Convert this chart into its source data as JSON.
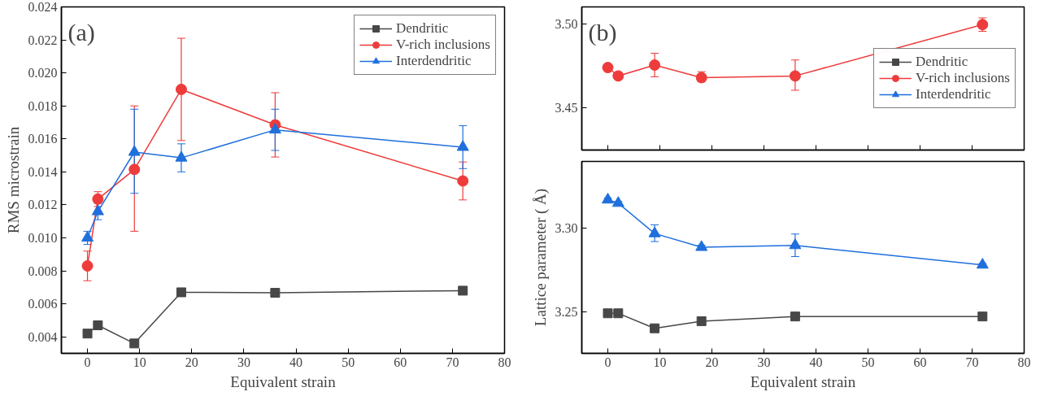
{
  "chart_data": [
    {
      "type": "line",
      "title": "(a)",
      "xlabel": "Equivalent strain",
      "ylabel": "RMS microstrain",
      "x": [
        0,
        2,
        9,
        18,
        36,
        72
      ],
      "xlim": [
        -5,
        80
      ],
      "xticks": [
        0,
        10,
        20,
        30,
        40,
        50,
        60,
        70,
        80
      ],
      "ylim": [
        0.003,
        0.024
      ],
      "yticks": [
        {
          "value": 0.004,
          "label": "0.004"
        },
        {
          "value": 0.006,
          "label": "0.006"
        },
        {
          "value": 0.008,
          "label": "0.008"
        },
        {
          "value": 0.01,
          "label": "0.010"
        },
        {
          "value": 0.012,
          "label": "0.012"
        },
        {
          "value": 0.014,
          "label": "0.014"
        },
        {
          "value": 0.016,
          "label": "0.016"
        },
        {
          "value": 0.018,
          "label": "0.018"
        },
        {
          "value": 0.02,
          "label": "0.020"
        },
        {
          "value": 0.022,
          "label": "0.022"
        },
        {
          "value": 0.024,
          "label": "0.024"
        }
      ],
      "grid": false,
      "legend": "top right",
      "series": [
        {
          "name": "Dendritic",
          "color": "#474747",
          "marker": "square",
          "values": [
            0.0042,
            0.0047,
            0.0036,
            0.0067,
            0.00667,
            0.0068
          ]
        },
        {
          "name": "V-rich inclusions",
          "color": "#ee3b3b",
          "marker": "circle",
          "values": [
            0.0083,
            0.01235,
            0.01415,
            0.019,
            0.01685,
            0.01345
          ],
          "errors": [
            [
              0.0074,
              0.0092
            ],
            [
              0.0119,
              0.0128
            ],
            [
              0.0104,
              0.018
            ],
            [
              0.0159,
              0.0221
            ],
            [
              0.0149,
              0.0188
            ],
            [
              0.0123,
              0.0146
            ]
          ]
        },
        {
          "name": "Interdendritic",
          "color": "#1f6fdc",
          "marker": "triangle",
          "values": [
            0.01,
            0.0116,
            0.0152,
            0.01485,
            0.01655,
            0.0155
          ],
          "errors": [
            [
              0.0096,
              0.0104
            ],
            [
              0.0111,
              0.0121
            ],
            [
              0.0127,
              0.0178
            ],
            [
              0.014,
              0.0157
            ],
            [
              0.0153,
              0.0178
            ],
            [
              0.0142,
              0.0168
            ]
          ]
        }
      ]
    },
    {
      "type": "line",
      "title": "(b)",
      "x": [
        0,
        2,
        9,
        18,
        36,
        72
      ],
      "xlim": [
        -5,
        80
      ],
      "xticks": [
        0,
        10,
        20,
        30,
        40,
        50,
        60,
        70,
        80
      ],
      "ylim": [
        3.425,
        3.51
      ],
      "yticks": [
        {
          "value": 3.45,
          "label": "3.45"
        },
        {
          "value": 3.5,
          "label": "3.50"
        }
      ],
      "tick_labels": "y",
      "grid": false,
      "legend": "right",
      "series": [
        {
          "name": "Dendritic",
          "color": "#474747",
          "marker": "square",
          "values": [
            null,
            null,
            null,
            null,
            null,
            null
          ]
        },
        {
          "name": "V-rich inclusions",
          "color": "#ee3b3b",
          "marker": "circle",
          "values": [
            3.474,
            3.469,
            3.4755,
            3.468,
            3.469,
            3.4995
          ],
          "errors": [
            0.001,
            0.0015,
            [
              3.4685,
              3.4825
            ],
            [
              3.4655,
              3.4715
            ],
            [
              3.4605,
              3.4785
            ],
            [
              3.4955,
              3.5035
            ]
          ]
        },
        {
          "name": "Interdendritic",
          "color": "#1f6fdc",
          "marker": "triangle",
          "values": [
            null,
            null,
            null,
            null,
            null,
            null
          ]
        }
      ]
    },
    {
      "type": "line",
      "xlabel": "Equivalent strain",
      "ylabel": "Lattice parameter ( Å)",
      "x": [
        0,
        2,
        9,
        18,
        36,
        72
      ],
      "xlim": [
        -5,
        80
      ],
      "xticks": [
        0,
        10,
        20,
        30,
        40,
        50,
        60,
        70,
        80
      ],
      "ylim": [
        3.225,
        3.34
      ],
      "yticks": [
        {
          "value": 3.25,
          "label": "3.25"
        },
        {
          "value": 3.3,
          "label": "3.30"
        }
      ],
      "grid": false,
      "series": [
        {
          "color": "#474747",
          "marker": "square",
          "values": [
            3.249,
            3.249,
            3.24,
            3.2443,
            3.2471,
            3.2471
          ]
        },
        {
          "color": "#1f6fdc",
          "marker": "triangle",
          "values": [
            3.317,
            3.315,
            3.2968,
            3.2886,
            3.2897,
            3.278
          ],
          "errors": [
            0.001,
            0.001,
            [
              3.292,
              3.302
            ],
            0.0012,
            [
              3.283,
              3.2965
            ],
            0.0008
          ]
        }
      ]
    }
  ]
}
